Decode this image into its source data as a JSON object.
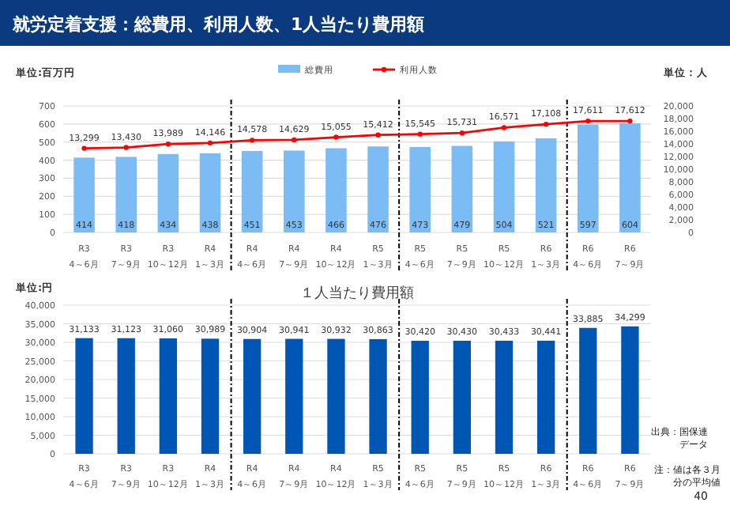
{
  "chart_data": [
    {
      "type": "bar",
      "title": "就労定着支援：総費用、利用人数、1人当たり費用額",
      "ylabel": "単位:百万円",
      "y2label": "単位：人",
      "categories": [
        "R3\n4～6月",
        "R3\n7～9月",
        "R3\n10～12月",
        "R4\n1～3月",
        "R4\n4～6月",
        "R4\n7～9月",
        "R4\n10～12月",
        "R5\n1～3月",
        "R5\n4～6月",
        "R5\n7～9月",
        "R5\n10～12月",
        "R6\n1～3月",
        "R6\n4～6月",
        "R6\n7～9月"
      ],
      "series": [
        {
          "name": "総費用",
          "color": "#7cbcf5",
          "values": [
            414,
            418,
            434,
            438,
            451,
            453,
            466,
            476,
            473,
            479,
            504,
            521,
            597,
            604
          ]
        },
        {
          "name": "利用人数",
          "type": "line",
          "axis": "y2",
          "color": "#ff0000",
          "values": [
            13299,
            13430,
            13989,
            14146,
            14578,
            14629,
            15055,
            15412,
            15545,
            15731,
            16571,
            17108,
            17611,
            17612
          ],
          "value_labels": [
            "13,299",
            "13,430",
            "13,989",
            "14,146",
            "14,578",
            "14,629",
            "15,055",
            "15,412",
            "15,545",
            "15,731",
            "16,571",
            "17,108",
            "17,611",
            "17,612"
          ]
        }
      ],
      "ylim": [
        0,
        700
      ],
      "yticks": [
        0,
        100,
        200,
        300,
        400,
        500,
        600,
        700
      ],
      "y2lim": [
        0,
        20000
      ],
      "y2ticks": [
        0,
        {
          "value": 2000,
          "label": "2,000"
        },
        {
          "value": 4000,
          "label": "4,000"
        },
        {
          "value": 6000,
          "label": "6,000"
        },
        {
          "value": 8000,
          "label": "8,000"
        },
        {
          "value": 10000,
          "label": "10,000"
        },
        {
          "value": 12000,
          "label": "12,000"
        },
        {
          "value": 14000,
          "label": "14,000"
        },
        {
          "value": 16000,
          "label": "16,000"
        },
        {
          "value": 18000,
          "label": "18,000"
        },
        {
          "value": 20000,
          "label": "20,000"
        }
      ],
      "grid": "y",
      "legend": "top",
      "marker": "circle",
      "data_labels": true
    },
    {
      "type": "bar",
      "title": "１人当たり費用額",
      "ylabel": "単位:円",
      "categories": [
        "R3\n4～6月",
        "R3\n7～9月",
        "R3\n10～12月",
        "R4\n1～3月",
        "R4\n4～6月",
        "R4\n7～9月",
        "R4\n10～12月",
        "R5\n1～3月",
        "R5\n4～6月",
        "R5\n7～9月",
        "R5\n10～12月",
        "R6\n1～3月",
        "R6\n4～6月",
        "R6\n7～9月"
      ],
      "values": [
        31133,
        31123,
        31060,
        30989,
        30904,
        30941,
        30932,
        30863,
        30420,
        30430,
        30433,
        30441,
        33885,
        34299
      ],
      "value_labels": [
        "31,133",
        "31,123",
        "31,060",
        "30,989",
        "30,904",
        "30,941",
        "30,932",
        "30,863",
        "30,420",
        "30,430",
        "30,433",
        "30,441",
        "33,885",
        "34,299"
      ],
      "color": "#0056b3",
      "ylim": [
        0,
        40000
      ],
      "yticks": [
        0,
        {
          "value": 5000,
          "label": "5,000"
        },
        {
          "value": 10000,
          "label": "10,000"
        },
        {
          "value": 15000,
          "label": "15,000"
        },
        {
          "value": 20000,
          "label": "20,000"
        },
        {
          "value": 25000,
          "label": "25,000"
        },
        {
          "value": 30000,
          "label": "30,000"
        },
        {
          "value": 35000,
          "label": "35,000"
        },
        {
          "value": 40000,
          "label": "40,000"
        }
      ],
      "grid": "y",
      "annotations": [
        "出典：国保連データ",
        "注：値は各３月分の平均値",
        "40"
      ]
    }
  ]
}
